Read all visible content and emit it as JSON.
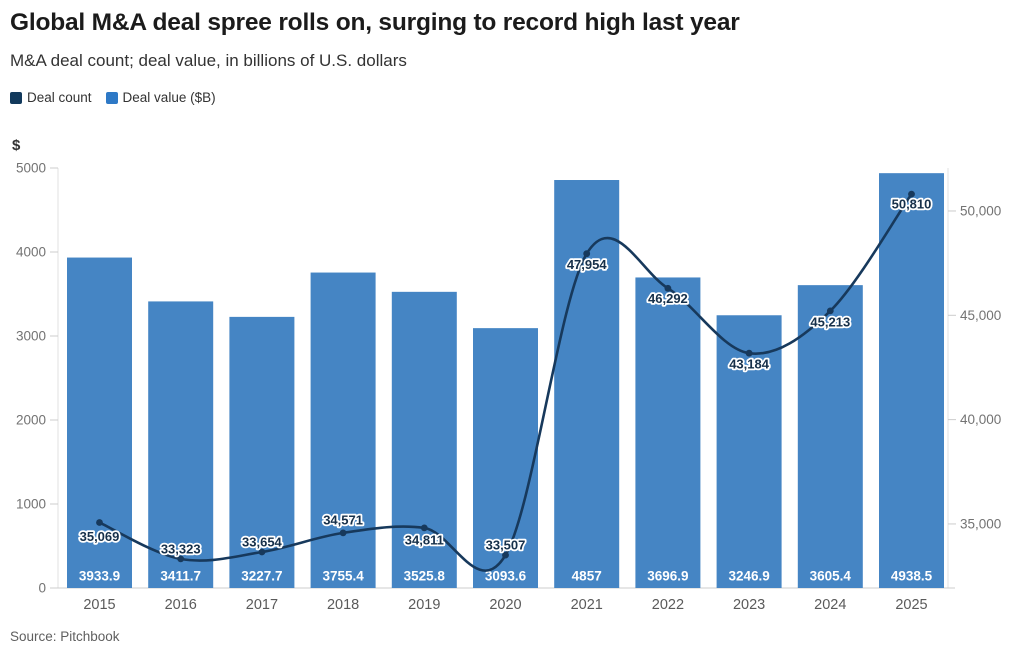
{
  "header": {
    "title": "Global M&A deal spree rolls on, surging to record high last year",
    "subtitle": "M&A deal count; deal value, in billions of U.S. dollars"
  },
  "legend": [
    {
      "label": "Deal count",
      "color": "#12395c",
      "series": "line"
    },
    {
      "label": "Deal value ($B)",
      "color": "#2e79c6",
      "series": "bar"
    }
  ],
  "chart_data": {
    "type": "combo-bar-line",
    "title": "Global M&A deal spree rolls on, surging to record high last year",
    "subtitle": "M&A deal count; deal value, in billions of U.S. dollars",
    "categories": [
      "2015",
      "2016",
      "2017",
      "2018",
      "2019",
      "2020",
      "2021",
      "2022",
      "2023",
      "2024",
      "2025"
    ],
    "series": [
      {
        "name": "Deal value ($B)",
        "type": "bar",
        "axis": "left",
        "color": "#4585c4",
        "values": [
          3933.9,
          3411.7,
          3227.7,
          3755.4,
          3525.8,
          3093.6,
          4857,
          3696.9,
          3246.9,
          3605.4,
          4938.5
        ],
        "labels": [
          "3933.9",
          "3411.7",
          "3227.7",
          "3755.4",
          "3525.8",
          "3093.6",
          "4857",
          "3696.9",
          "3246.9",
          "3605.4",
          "4938.5"
        ],
        "label_color": "#ffffff"
      },
      {
        "name": "Deal count",
        "type": "line",
        "axis": "right",
        "color": "#17395c",
        "values": [
          35069,
          33323,
          33654,
          34571,
          34811,
          33507,
          47954,
          46292,
          43184,
          45213,
          50810
        ],
        "labels": [
          "35,069",
          "33,323",
          "33,654",
          "34,571",
          "34,811",
          "33,507",
          "47,954",
          "46,292",
          "43,184",
          "45,213",
          "50,810"
        ],
        "label_color": "#16304a"
      }
    ],
    "left_axis": {
      "title": "$",
      "ticks": [
        0,
        1000,
        2000,
        3000,
        4000,
        5000
      ],
      "tick_labels": [
        "0",
        "1000",
        "2000",
        "3000",
        "4000",
        "5000"
      ],
      "range": [
        0,
        5000
      ]
    },
    "right_axis": {
      "ticks": [
        35000,
        40000,
        45000,
        50000
      ],
      "tick_labels": [
        "35,000",
        "40,000",
        "45,000",
        "50,000"
      ],
      "range": [
        31930,
        52060
      ]
    },
    "grid": "off",
    "legend_position": "top-left"
  },
  "source": "Source: Pitchbook"
}
